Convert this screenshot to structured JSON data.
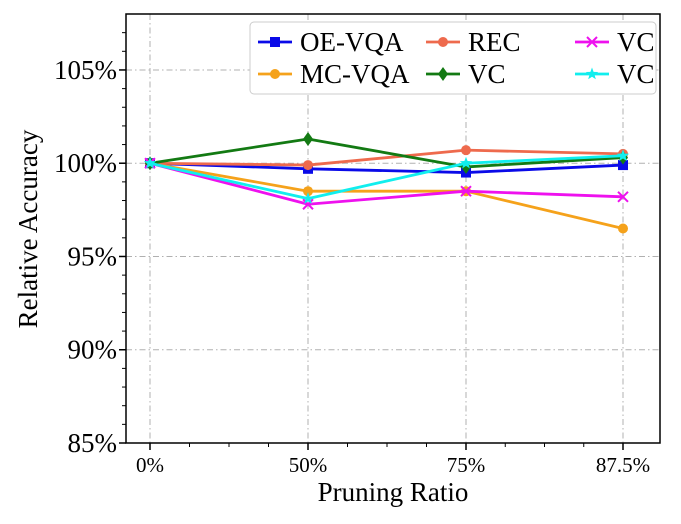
{
  "chart_data": {
    "type": "line",
    "xlabel": "Pruning Ratio",
    "ylabel": "Relative Accuracy",
    "categories": [
      "0%",
      "50%",
      "75%",
      "87.5%"
    ],
    "ylim": [
      85,
      108
    ],
    "yticks": [
      85,
      90,
      95,
      100,
      105
    ],
    "ytick_labels": [
      "85%",
      "90%",
      "95%",
      "100%",
      "105%"
    ],
    "grid": true,
    "legend_position": "top-right",
    "legend_columns": 3,
    "series": [
      {
        "name": "OE-VQA",
        "color": "#0a0ae8",
        "marker": "square",
        "values": [
          100.0,
          99.7,
          99.5,
          99.9
        ]
      },
      {
        "name": "MC-VQA",
        "color": "#f5a21b",
        "marker": "circle",
        "values": [
          100.0,
          98.5,
          98.5,
          96.5
        ]
      },
      {
        "name": "REC",
        "color": "#ee6a4d",
        "marker": "circle",
        "values": [
          100.0,
          99.9,
          100.7,
          100.5
        ]
      },
      {
        "name": "VC",
        "color": "#137a13",
        "marker": "diamond",
        "values": [
          100.0,
          101.3,
          99.8,
          100.3
        ]
      },
      {
        "name": "VC",
        "color": "#ee11ee",
        "marker": "x",
        "values": [
          100.0,
          97.8,
          98.5,
          98.2
        ]
      },
      {
        "name": "VC",
        "color": "#11eeee",
        "marker": "star",
        "values": [
          100.0,
          98.1,
          100.0,
          100.4
        ]
      }
    ]
  }
}
